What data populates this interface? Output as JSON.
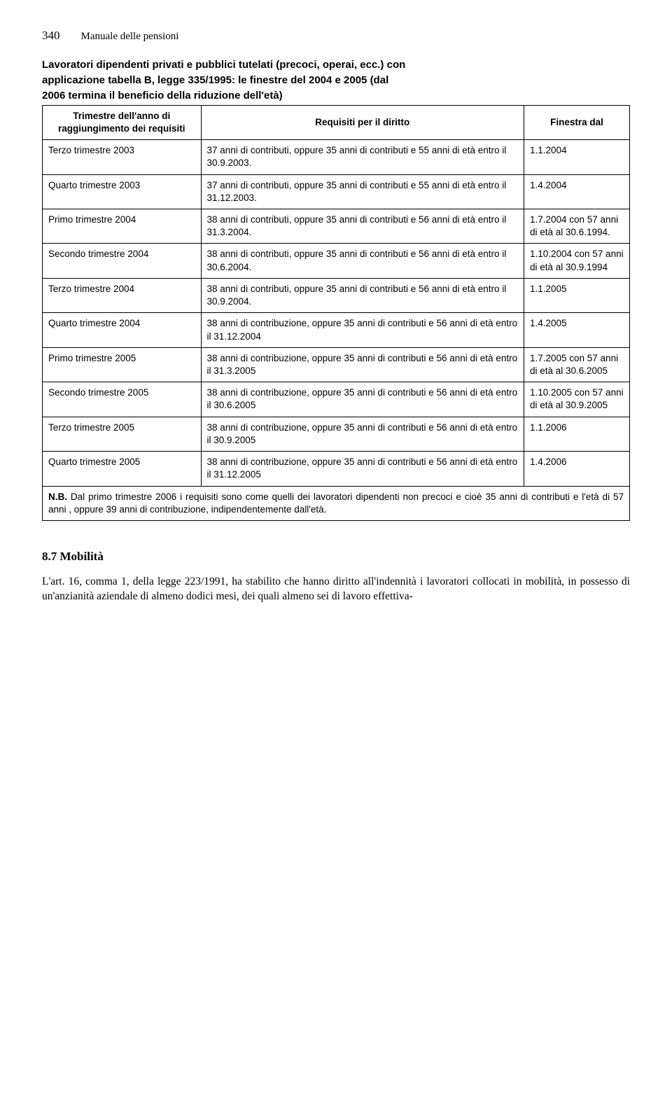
{
  "header": {
    "page_number": "340",
    "title": "Manuale delle pensioni"
  },
  "table": {
    "title_line1": "Lavoratori dipendenti privati e pubblici tutelati (precoci, operai, ecc.) con",
    "title_line2": "applicazione tabella B, legge 335/1995: le finestre del 2004 e 2005 (dal",
    "title_line3": "2006 termina il beneficio della riduzione dell'età)",
    "headers": {
      "col1": "Trimestre dell'anno di raggiungimento dei requisiti",
      "col2": "Requisiti per il diritto",
      "col3": "Finestra dal"
    },
    "rows": [
      {
        "c1": "Terzo trimestre 2003",
        "c2": "37 anni di contributi, oppure 35 anni di contributi e 55 anni di età entro il 30.9.2003.",
        "c3": "1.1.2004"
      },
      {
        "c1": "Quarto trimestre 2003",
        "c2": "37 anni di contributi, oppure 35 anni di contributi e 55 anni di età entro il 31.12.2003.",
        "c3": "1.4.2004"
      },
      {
        "c1": "Primo trimestre 2004",
        "c2": "38 anni di contributi, oppure 35 anni di contributi e 56 anni di età entro il 31.3.2004.",
        "c3": "1.7.2004 con 57 anni di età al 30.6.1994."
      },
      {
        "c1": "Secondo trimestre 2004",
        "c2": "38 anni di contributi, oppure 35 anni di contributi e 56 anni di età entro il 30.6.2004.",
        "c3": "1.10.2004 con 57 anni di età al 30.9.1994"
      },
      {
        "c1": "Terzo trimestre 2004",
        "c2": "38 anni di contributi, oppure 35 anni di contributi e 56 anni di età entro il 30.9.2004.",
        "c3": "1.1.2005"
      },
      {
        "c1": "Quarto trimestre 2004",
        "c2": "38 anni di contribuzione, oppure 35 anni di contributi e 56 anni di età entro il 31.12.2004",
        "c3": "1.4.2005"
      },
      {
        "c1": "Primo trimestre 2005",
        "c2": "38 anni di contribuzione, oppure 35 anni di contributi e 56 anni di età entro il 31.3.2005",
        "c3": "1.7.2005 con 57 anni di età al 30.6.2005"
      },
      {
        "c1": "Secondo trimestre 2005",
        "c2": "38 anni di contribuzione, oppure 35 anni di contributi e 56 anni di età entro il 30.6.2005",
        "c3": "1.10.2005 con 57 anni di età al 30.9.2005"
      },
      {
        "c1": "Terzo trimestre 2005",
        "c2": "38 anni di contribuzione, oppure 35 anni di contributi e 56 anni di età entro il 30.9.2005",
        "c3": "1.1.2006"
      },
      {
        "c1": "Quarto trimestre 2005",
        "c2": "38 anni di contribuzione, oppure 35 anni di contributi e 56 anni di età entro il 31.12.2005",
        "c3": "1.4.2006"
      }
    ],
    "note_label": "N.B.",
    "note_text": " Dal primo trimestre 2006 i requisiti sono come quelli dei lavoratori dipendenti non precoci e cioè 35 anni di contributi e l'età di 57 anni , oppure 39 anni di contribuzione, indipendentemente dall'età."
  },
  "section": {
    "title": "8.7 Mobilità",
    "body": "L'art. 16, comma 1, della legge 223/1991, ha stabilito che hanno diritto all'indennità i lavoratori collocati in mobilità, in possesso di un'anzianità aziendale di almeno dodici mesi, dei quali almeno sei di lavoro effettiva-"
  }
}
